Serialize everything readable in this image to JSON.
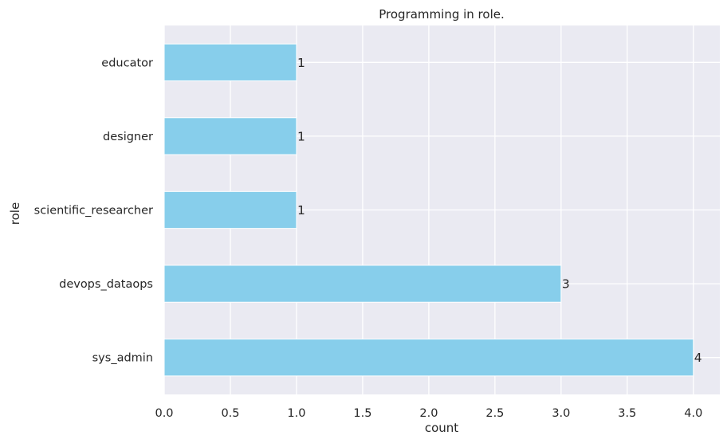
{
  "chart_data": {
    "type": "bar",
    "orientation": "horizontal",
    "title": "Programming in role.",
    "xlabel": "count",
    "ylabel": "role",
    "categories": [
      "sys_admin",
      "devops_dataops",
      "scientific_researcher",
      "designer",
      "educator"
    ],
    "values": [
      4,
      3,
      1,
      1,
      1
    ],
    "data_labels": [
      "4",
      "3",
      "1",
      "1",
      "1"
    ],
    "xlim": [
      0,
      4.2
    ],
    "xticks": [
      0.0,
      0.5,
      1.0,
      1.5,
      2.0,
      2.5,
      3.0,
      3.5,
      4.0
    ],
    "xtick_labels": [
      "0.0",
      "0.5",
      "1.0",
      "1.5",
      "2.0",
      "2.5",
      "3.0",
      "3.5",
      "4.0"
    ],
    "grid": true,
    "colors": {
      "bar": "#87ceeb",
      "plot_background": "#eaeaf2",
      "grid": "#ffffff",
      "text": "#262626"
    }
  }
}
